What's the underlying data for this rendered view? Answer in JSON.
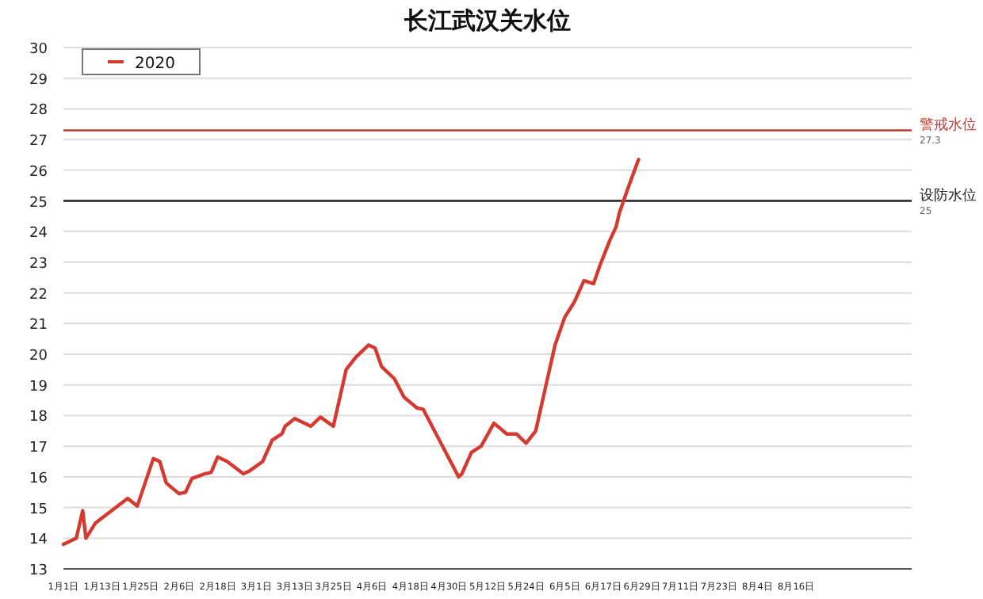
{
  "chart_data": {
    "type": "line",
    "title": "长江武汉关水位",
    "x": [
      "2020-01-01",
      "2020-01-05",
      "2020-01-07",
      "2020-01-08",
      "2020-01-11",
      "2020-01-16",
      "2020-01-21",
      "2020-01-24",
      "2020-01-29",
      "2020-01-31",
      "2020-02-02",
      "2020-02-06",
      "2020-02-08",
      "2020-02-10",
      "2020-02-14",
      "2020-02-16",
      "2020-02-18",
      "2020-02-21",
      "2020-02-26",
      "2020-02-28",
      "2020-03-03",
      "2020-03-06",
      "2020-03-09",
      "2020-03-10",
      "2020-03-13",
      "2020-03-18",
      "2020-03-21",
      "2020-03-25",
      "2020-03-29",
      "2020-04-01",
      "2020-04-05",
      "2020-04-07",
      "2020-04-09",
      "2020-04-13",
      "2020-04-16",
      "2020-04-20",
      "2020-04-22",
      "2020-04-25",
      "2020-04-30",
      "2020-05-03",
      "2020-05-04",
      "2020-05-07",
      "2020-05-10",
      "2020-05-14",
      "2020-05-18",
      "2020-05-21",
      "2020-05-24",
      "2020-05-27",
      "2020-05-30",
      "2020-06-02",
      "2020-06-05",
      "2020-06-08",
      "2020-06-11",
      "2020-06-14",
      "2020-06-16",
      "2020-06-19",
      "2020-06-21",
      "2020-06-22",
      "2020-06-24",
      "2020-06-25",
      "2020-06-28"
    ],
    "series": [
      {
        "name": "2020",
        "color": "#d43a2f",
        "values": [
          13.8,
          14.0,
          14.9,
          14.0,
          14.5,
          14.9,
          15.3,
          15.05,
          16.6,
          16.5,
          15.8,
          15.45,
          15.5,
          15.95,
          16.1,
          16.15,
          16.65,
          16.5,
          16.1,
          16.2,
          16.5,
          17.2,
          17.4,
          17.65,
          17.9,
          17.65,
          17.95,
          17.65,
          19.5,
          19.9,
          20.3,
          20.2,
          19.6,
          19.2,
          18.6,
          18.25,
          18.2,
          17.6,
          16.6,
          16.0,
          16.1,
          16.8,
          17.0,
          17.75,
          17.4,
          17.4,
          17.1,
          17.5,
          18.9,
          20.3,
          21.2,
          21.7,
          22.4,
          22.3,
          22.9,
          23.7,
          24.15,
          24.6,
          25.2,
          25.5,
          26.35
        ]
      }
    ],
    "xlim": [
      "2020-01-01",
      "2020-09-21"
    ],
    "xticks": [
      {
        "value": "2020-01-01",
        "label": "1月1日"
      },
      {
        "value": "2020-01-13",
        "label": "1月13日"
      },
      {
        "value": "2020-01-25",
        "label": "1月25日"
      },
      {
        "value": "2020-02-06",
        "label": "2月6日"
      },
      {
        "value": "2020-02-18",
        "label": "2月18日"
      },
      {
        "value": "2020-03-01",
        "label": "3月1日"
      },
      {
        "value": "2020-03-13",
        "label": "3月13日"
      },
      {
        "value": "2020-03-25",
        "label": "3月25日"
      },
      {
        "value": "2020-04-06",
        "label": "4月6日"
      },
      {
        "value": "2020-04-18",
        "label": "4月18日"
      },
      {
        "value": "2020-04-30",
        "label": "4月30日"
      },
      {
        "value": "2020-05-12",
        "label": "5月12日"
      },
      {
        "value": "2020-05-24",
        "label": "5月24日"
      },
      {
        "value": "2020-06-05",
        "label": "6月5日"
      },
      {
        "value": "2020-06-17",
        "label": "6月17日"
      },
      {
        "value": "2020-06-29",
        "label": "6月29日"
      },
      {
        "value": "2020-07-11",
        "label": "7月11日"
      },
      {
        "value": "2020-07-23",
        "label": "7月23日"
      },
      {
        "value": "2020-08-04",
        "label": "8月4日"
      },
      {
        "value": "2020-08-16",
        "label": "8月16日"
      }
    ],
    "ylim": [
      13,
      30
    ],
    "yticks": [
      13,
      14,
      15,
      16,
      17,
      18,
      19,
      20,
      21,
      22,
      23,
      24,
      25,
      26,
      27,
      28,
      29,
      30
    ],
    "ref_lines": [
      {
        "axis": "y",
        "value": 27.3,
        "label": "警戒水位",
        "color": "#c0392b"
      },
      {
        "axis": "y",
        "value": 25,
        "label": "设防水位",
        "color": "#222222"
      }
    ],
    "annotations": [
      {
        "text": "27.3",
        "x": "2020-09-21",
        "y": 27.3
      },
      {
        "text": "25",
        "x": "2020-09-21",
        "y": 25
      }
    ],
    "grid": "y",
    "legend": "top left",
    "marker": "none",
    "line_style": "solid"
  }
}
